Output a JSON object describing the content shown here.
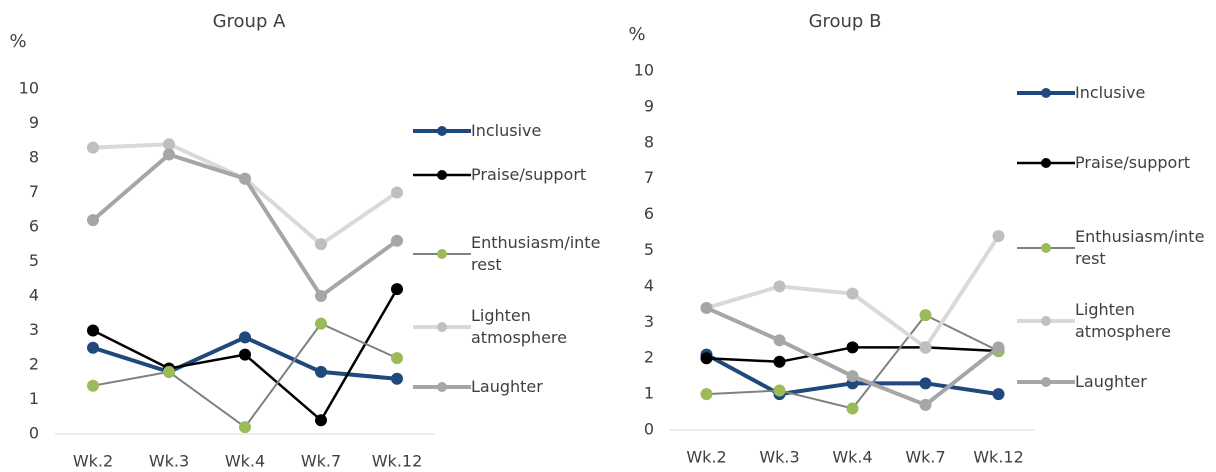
{
  "chart_data": [
    {
      "type": "line",
      "title": "Group A",
      "y_label": "%",
      "categories": [
        "Wk.2",
        "Wk.3",
        "Wk.4",
        "Wk.7",
        "Wk.12"
      ],
      "ylim": [
        0,
        10
      ],
      "yticks": [
        0,
        1,
        2,
        3,
        4,
        5,
        6,
        7,
        8,
        9,
        10
      ],
      "series": [
        {
          "name": "Inclusive",
          "color": "#1f497d",
          "values": [
            2.5,
            1.8,
            2.8,
            1.8,
            1.6
          ]
        },
        {
          "name": "Praise/support",
          "color": "#000000",
          "values": [
            3.0,
            1.9,
            2.3,
            0.4,
            4.2
          ]
        },
        {
          "name": "Enthusiasm/interest",
          "color": "#808080",
          "marker_color": "#9bbb59",
          "values": [
            1.4,
            1.8,
            0.2,
            3.2,
            2.2
          ]
        },
        {
          "name": "Lighten atmosphere",
          "color": "#d9d9d9",
          "marker_color": "#bfbfbf",
          "values": [
            8.3,
            8.4,
            7.4,
            5.5,
            7.0
          ]
        },
        {
          "name": "Laughter",
          "color": "#a6a6a6",
          "values": [
            6.2,
            8.1,
            7.4,
            4.0,
            5.6
          ]
        }
      ]
    },
    {
      "type": "line",
      "title": "Group B",
      "y_label": "%",
      "categories": [
        "Wk.2",
        "Wk.3",
        "Wk.4",
        "Wk.7",
        "Wk.12"
      ],
      "ylim": [
        0,
        10
      ],
      "yticks": [
        0,
        1,
        2,
        3,
        4,
        5,
        6,
        7,
        8,
        9,
        10
      ],
      "series": [
        {
          "name": "Inclusive",
          "color": "#1f497d",
          "values": [
            2.1,
            1.0,
            1.3,
            1.3,
            1.0
          ]
        },
        {
          "name": "Praise/support",
          "color": "#000000",
          "values": [
            2.0,
            1.9,
            2.3,
            2.3,
            2.2
          ]
        },
        {
          "name": "Enthusiasm/interest",
          "color": "#808080",
          "marker_color": "#9bbb59",
          "values": [
            1.0,
            1.1,
            0.6,
            3.2,
            2.2
          ]
        },
        {
          "name": "Lighten atmosphere",
          "color": "#d9d9d9",
          "marker_color": "#bfbfbf",
          "values": [
            3.4,
            4.0,
            3.8,
            2.3,
            5.4
          ]
        },
        {
          "name": "Laughter",
          "color": "#a6a6a6",
          "values": [
            3.4,
            2.5,
            1.5,
            0.7,
            2.3
          ]
        }
      ]
    }
  ]
}
